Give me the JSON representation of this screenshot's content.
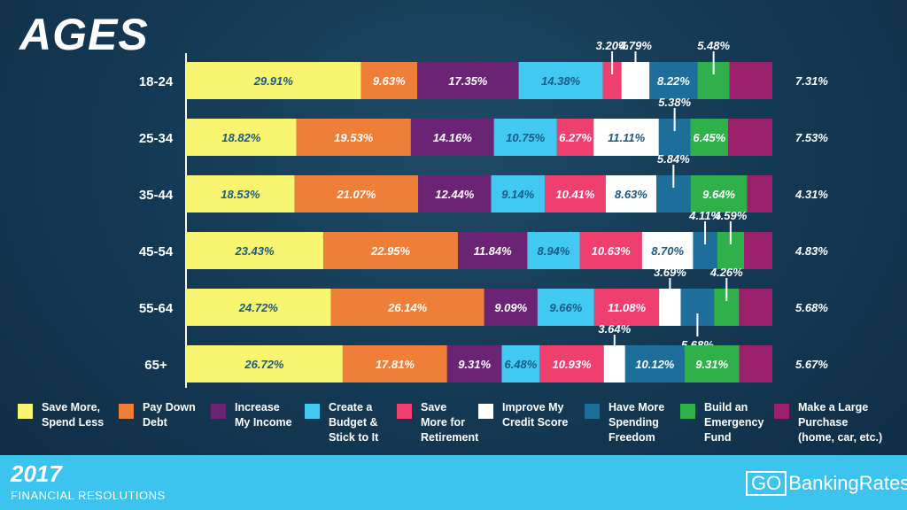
{
  "title": "AGES",
  "footer": {
    "year": "2017",
    "subtitle": "FINANCIAL RESOLUTIONS",
    "logo_go": "GO",
    "logo_text": "BankingRates"
  },
  "legend": [
    {
      "label": "Save More,\nSpend Less",
      "color": "#f8f571"
    },
    {
      "label": "Pay Down\nDebt",
      "color": "#ef7e38"
    },
    {
      "label": "Increase\nMy Income",
      "color": "#6b2474"
    },
    {
      "label": "Create a\nBudget &\nStick to It",
      "color": "#41c9f2"
    },
    {
      "label": "Save\nMore for\nRetirement",
      "color": "#ee3f6e"
    },
    {
      "label": "Improve My\nCredit Score",
      "color": "#ffffff"
    },
    {
      "label": "Have More\nSpending\nFreedom",
      "color": "#1e6e9c"
    },
    {
      "label": "Build an\nEmergency\nFund",
      "color": "#2fb04a"
    },
    {
      "label": "Make a Large\nPurchase\n(home, car, etc.)",
      "color": "#9b1f6a"
    }
  ],
  "chart_data": {
    "type": "bar",
    "stacked": true,
    "orientation": "horizontal",
    "title": "AGES",
    "categories": [
      "18-24",
      "25-34",
      "35-44",
      "45-54",
      "55-64",
      "65+"
    ],
    "series": [
      {
        "name": "Save More, Spend Less",
        "values": [
          29.91,
          18.82,
          18.53,
          23.43,
          24.72,
          26.72
        ]
      },
      {
        "name": "Pay Down Debt",
        "values": [
          9.63,
          19.53,
          21.07,
          22.95,
          26.14,
          17.81
        ]
      },
      {
        "name": "Increase My Income",
        "values": [
          17.35,
          14.16,
          12.44,
          11.84,
          9.09,
          9.31
        ]
      },
      {
        "name": "Create a Budget & Stick to It",
        "values": [
          14.38,
          10.75,
          9.14,
          8.94,
          9.66,
          6.48
        ]
      },
      {
        "name": "Save More for Retirement",
        "values": [
          3.2,
          6.27,
          10.41,
          10.63,
          11.08,
          10.93
        ]
      },
      {
        "name": "Improve My Credit Score",
        "values": [
          4.79,
          11.11,
          8.63,
          8.7,
          3.69,
          3.64
        ]
      },
      {
        "name": "Have More Spending Freedom",
        "values": [
          8.22,
          5.38,
          5.84,
          4.11,
          5.68,
          10.12
        ]
      },
      {
        "name": "Build an Emergency Fund",
        "values": [
          5.48,
          6.45,
          9.64,
          4.59,
          4.26,
          9.31
        ]
      },
      {
        "name": "Make a Large Purchase (home, car, etc.)",
        "values": [
          7.31,
          7.53,
          4.31,
          4.83,
          5.68,
          5.67
        ]
      }
    ],
    "value_labels": [
      [
        "29.91%",
        "9.63%",
        "17.35%",
        "14.38%",
        "3.20%",
        "4.79%",
        "8.22%",
        "5.48%",
        "7.31%"
      ],
      [
        "18.82%",
        "19.53%",
        "14.16%",
        "10.75%",
        "6.27%",
        "11.11%",
        "5.38%",
        "6.45%",
        "7.53%"
      ],
      [
        "18.53%",
        "21.07%",
        "12.44%",
        "9.14%",
        "10.41%",
        "8.63%",
        "5.84%",
        "9.64%",
        "4.31%"
      ],
      [
        "23.43%",
        "22.95%",
        "11.84%",
        "8.94%",
        "10.63%",
        "8.70%",
        "4.11%",
        "4.59%",
        "4.83%"
      ],
      [
        "24.72%",
        "26.14%",
        "9.09%",
        "9.66%",
        "11.08%",
        "3.69%",
        "5.68%",
        "4.26%",
        "5.68%"
      ],
      [
        "26.72%",
        "17.81%",
        "9.31%",
        "6.48%",
        "10.93%",
        "3.64%",
        "10.12%",
        "9.31%",
        "5.67%"
      ]
    ],
    "callouts": [
      {
        "row": 0,
        "series": 4,
        "position": "above"
      },
      {
        "row": 0,
        "series": 5,
        "position": "above"
      },
      {
        "row": 0,
        "series": 7,
        "position": "above"
      },
      {
        "row": 1,
        "series": 6,
        "position": "above"
      },
      {
        "row": 2,
        "series": 6,
        "position": "above"
      },
      {
        "row": 3,
        "series": 6,
        "position": "above"
      },
      {
        "row": 3,
        "series": 7,
        "position": "above"
      },
      {
        "row": 4,
        "series": 5,
        "position": "above"
      },
      {
        "row": 4,
        "series": 7,
        "position": "above"
      },
      {
        "row": 4,
        "series": 6,
        "position": "below"
      },
      {
        "row": 5,
        "series": 5,
        "position": "above"
      }
    ],
    "outside_label_series": 8,
    "xlim": [
      0,
      100
    ]
  }
}
